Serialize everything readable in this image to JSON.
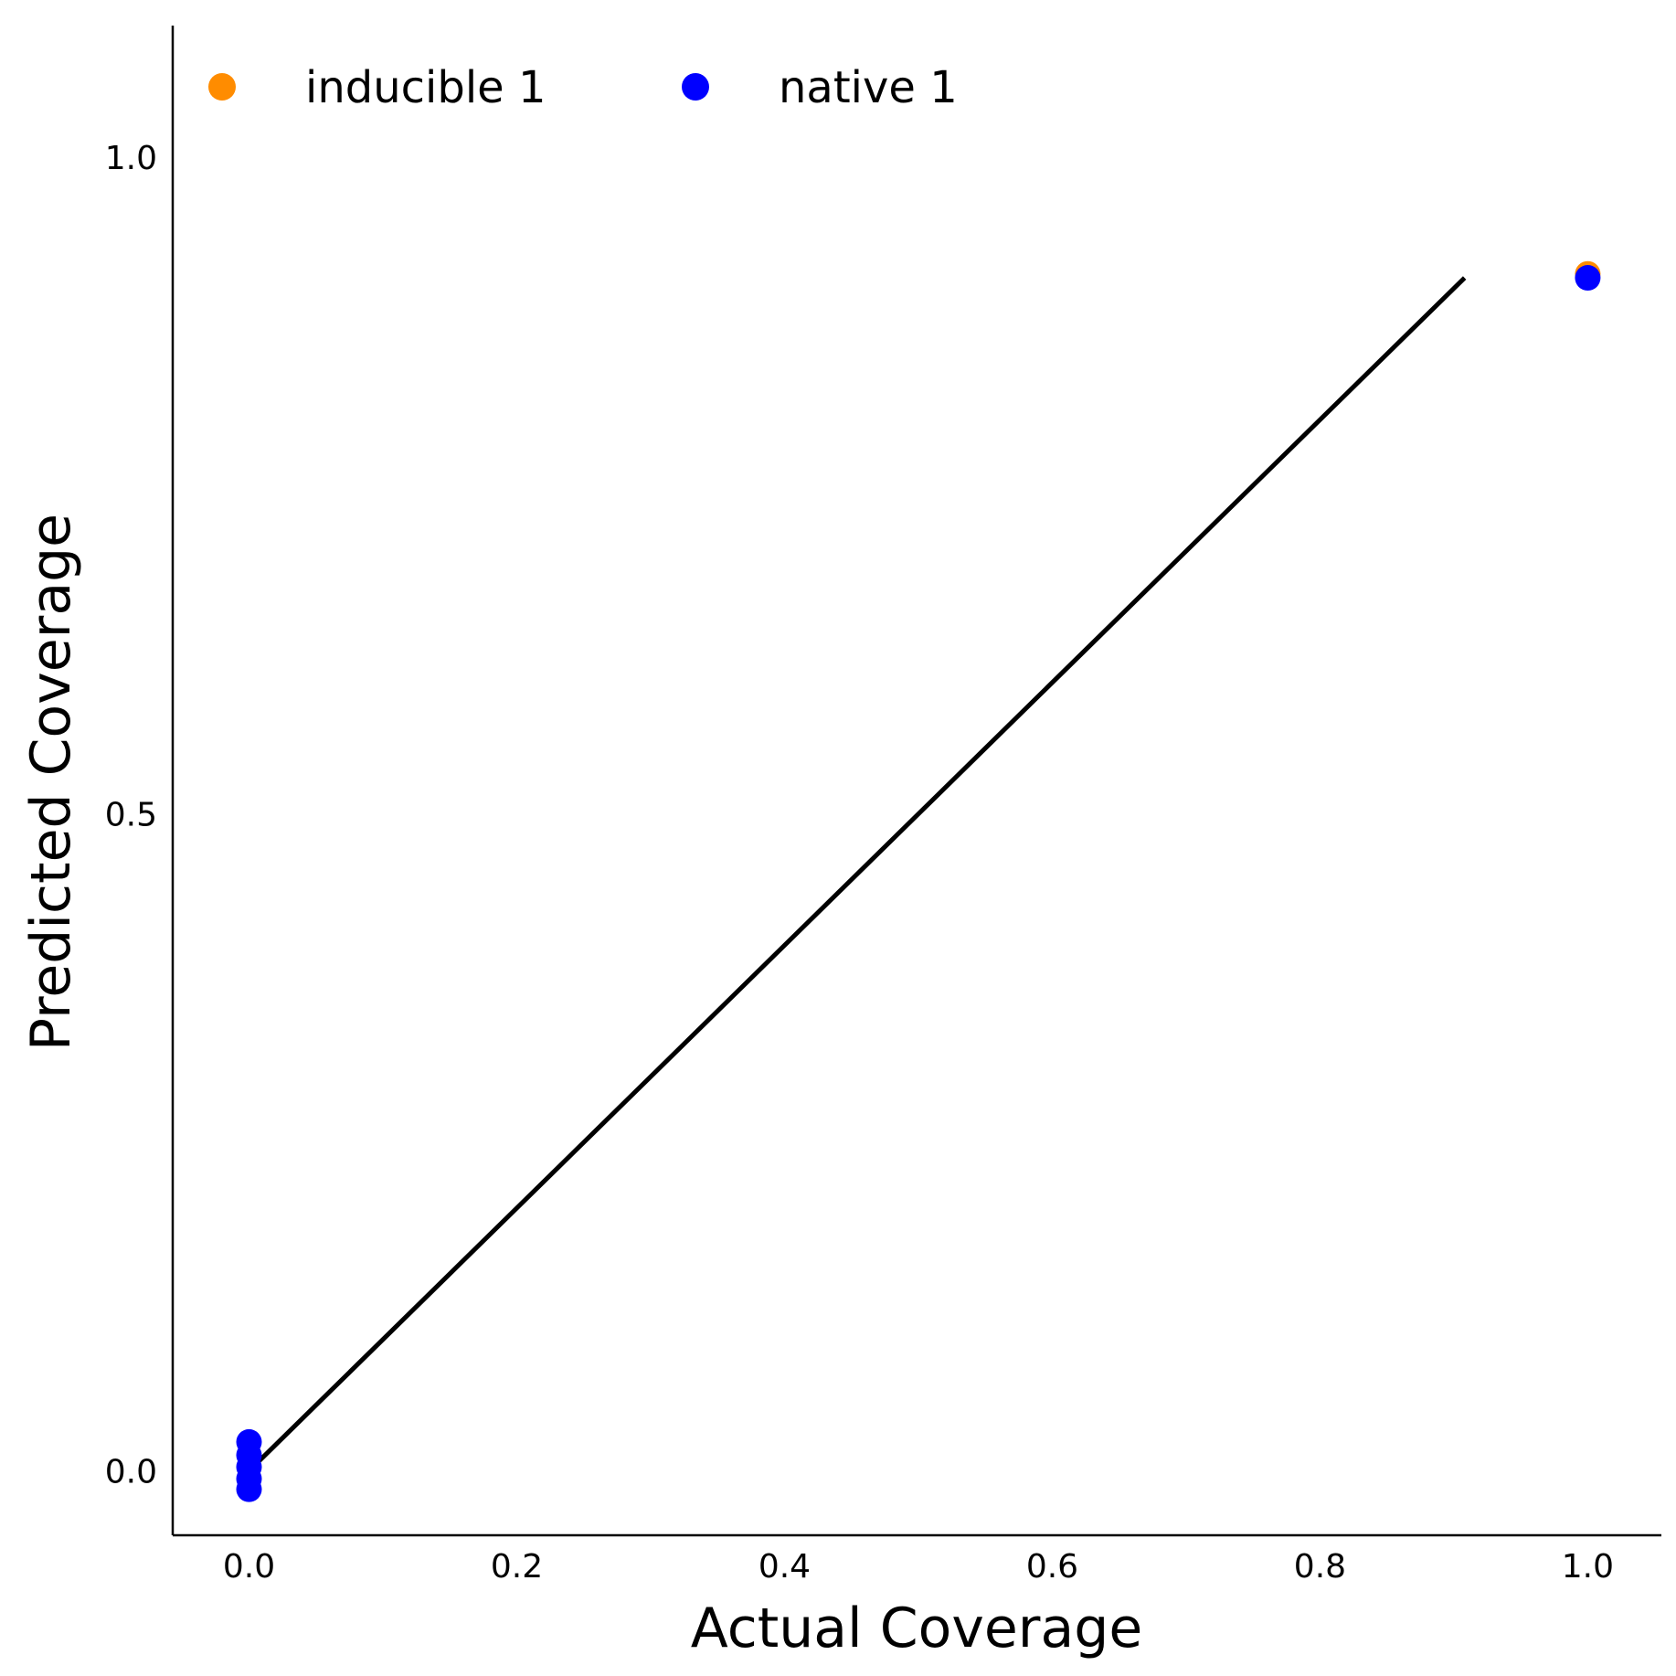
{
  "chart_data": {
    "type": "scatter",
    "xlabel": "Actual Coverage",
    "ylabel": "Predicted Coverage",
    "xlim": [
      -0.057,
      1.055
    ],
    "ylim": [
      -0.049,
      1.1
    ],
    "x_ticks": [
      "0.0",
      "0.2",
      "0.4",
      "0.6",
      "0.8",
      "1.0"
    ],
    "x_tick_values": [
      0.0,
      0.2,
      0.4,
      0.6,
      0.8,
      1.0
    ],
    "y_ticks": [
      "0.0",
      "0.5",
      "1.0"
    ],
    "y_tick_values": [
      0.0,
      0.5,
      1.0
    ],
    "grid": false,
    "legend_position": "top-left",
    "reference_line": {
      "x": [
        0.0,
        0.908
      ],
      "y": [
        0.0,
        0.908
      ],
      "color": "#000000"
    },
    "series": [
      {
        "name": "inducible 1",
        "color": "#ff8c00",
        "points": [
          {
            "x": 1.0,
            "y": 0.911
          }
        ]
      },
      {
        "name": "native 1",
        "color": "#0000ff",
        "points": [
          {
            "x": 1.0,
            "y": 0.908
          },
          {
            "x": 0.0,
            "y": 0.022
          },
          {
            "x": 0.0,
            "y": 0.012
          },
          {
            "x": 0.0,
            "y": 0.003
          },
          {
            "x": 0.0,
            "y": -0.006
          },
          {
            "x": 0.0,
            "y": -0.014
          }
        ]
      }
    ]
  }
}
